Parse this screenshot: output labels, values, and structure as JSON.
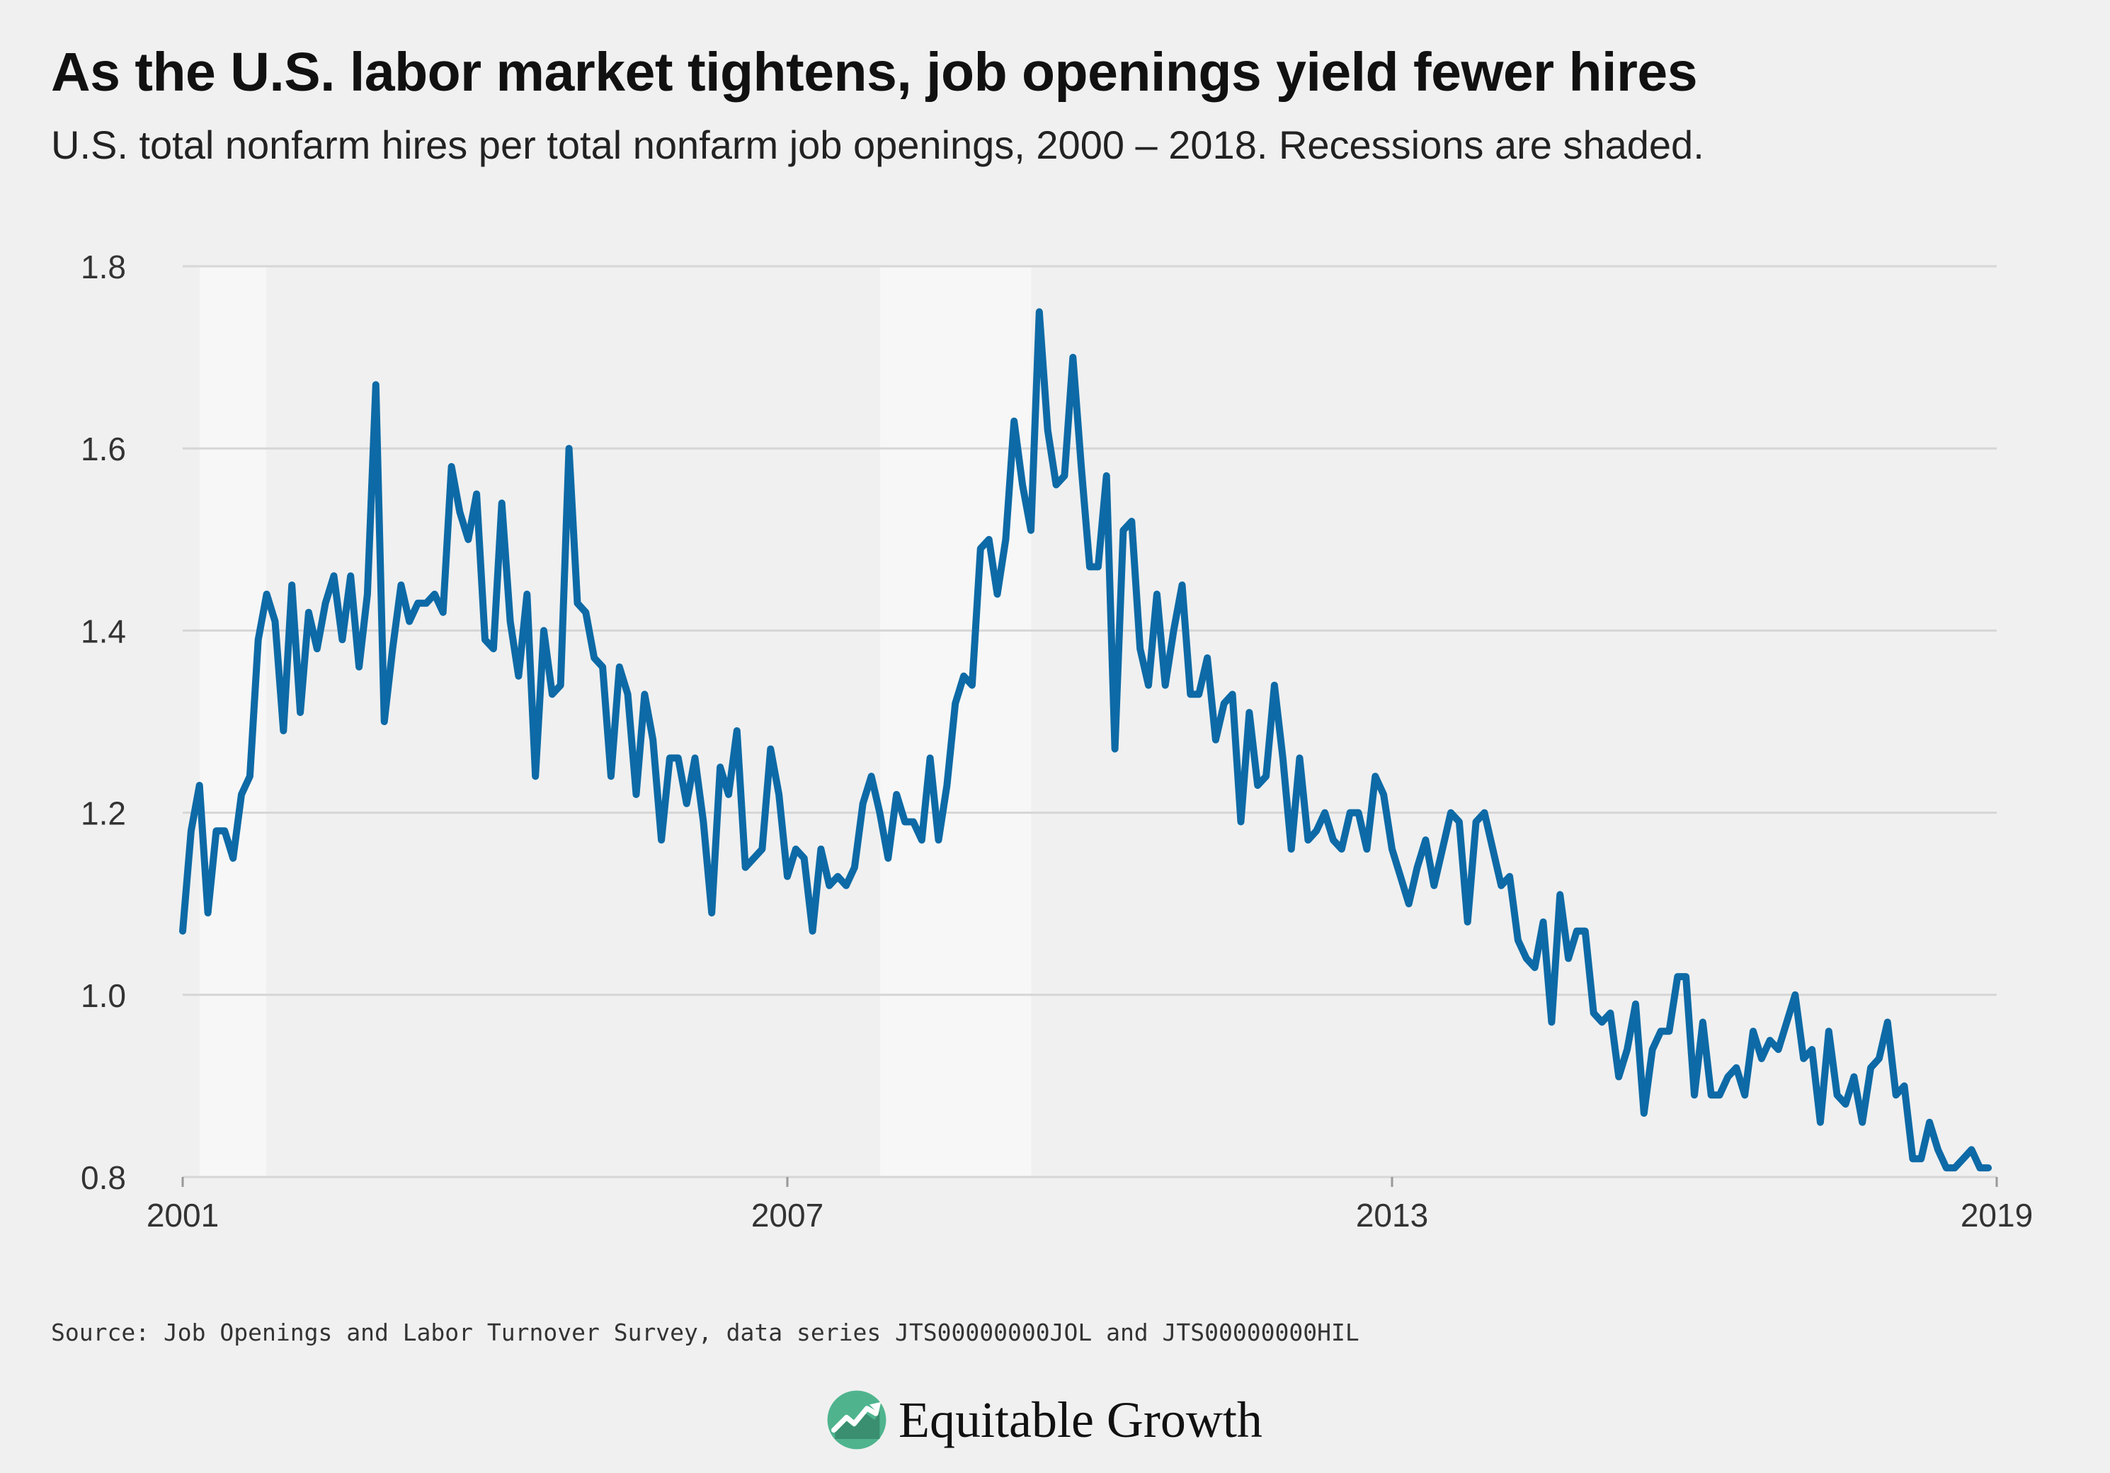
{
  "title": "As the U.S. labor market tightens, job openings yield fewer hires",
  "subtitle": "U.S. total nonfarm hires per total nonfarm job openings, 2000 – 2018. Recessions are shaded.",
  "source": "Source: Job Openings and Labor Turnover Survey, data series JTS00000000JOL and JTS00000000HIL",
  "brand": {
    "name": "Equitable Growth",
    "logo_icon": "chart-growth-logo-icon"
  },
  "colors": {
    "background": "#f0f0f0",
    "line": "#0d6aa6",
    "recession": "#f7f7f7",
    "grid": "#d6d6d6",
    "axis_text": "#333333",
    "logo": "#4fb48e"
  },
  "chart_data": {
    "type": "line",
    "title": "",
    "xlabel": "",
    "ylabel": "",
    "xlim": [
      2001,
      2019
    ],
    "ylim": [
      0.8,
      1.8
    ],
    "x_ticks": [
      2001,
      2007,
      2013,
      2019
    ],
    "x_tick_labels": [
      "2001",
      "2007",
      "2013",
      "2019"
    ],
    "y_ticks": [
      0.8,
      1.0,
      1.2,
      1.4,
      1.6,
      1.8
    ],
    "y_tick_labels": [
      "0.8",
      "1.0",
      "1.2",
      "1.4",
      "1.6",
      "1.8"
    ],
    "grid": "horizontal",
    "recessions": [
      {
        "start": 2001.17,
        "end": 2001.83
      },
      {
        "start": 2007.92,
        "end": 2009.42
      }
    ],
    "series": [
      {
        "values": [
          1.07,
          1.18,
          1.23,
          1.09,
          1.18,
          1.18,
          1.15,
          1.22,
          1.24,
          1.39,
          1.44,
          1.41,
          1.29,
          1.45,
          1.31,
          1.42,
          1.38,
          1.43,
          1.46,
          1.39,
          1.46,
          1.36,
          1.44,
          1.67,
          1.3,
          1.38,
          1.45,
          1.41,
          1.43,
          1.43,
          1.44,
          1.42,
          1.58,
          1.53,
          1.5,
          1.55,
          1.39,
          1.38,
          1.54,
          1.41,
          1.35,
          1.44,
          1.24,
          1.4,
          1.33,
          1.34,
          1.6,
          1.43,
          1.42,
          1.37,
          1.36,
          1.24,
          1.36,
          1.33,
          1.22,
          1.33,
          1.28,
          1.17,
          1.26,
          1.26,
          1.21,
          1.26,
          1.19,
          1.09,
          1.25,
          1.22,
          1.29,
          1.14,
          1.15,
          1.16,
          1.27,
          1.22,
          1.13,
          1.16,
          1.15,
          1.07,
          1.16,
          1.12,
          1.13,
          1.12,
          1.14,
          1.21,
          1.24,
          1.2,
          1.15,
          1.22,
          1.19,
          1.19,
          1.17,
          1.26,
          1.17,
          1.23,
          1.32,
          1.35,
          1.34,
          1.49,
          1.5,
          1.44,
          1.5,
          1.63,
          1.56,
          1.51,
          1.75,
          1.62,
          1.56,
          1.57,
          1.7,
          1.58,
          1.47,
          1.47,
          1.57,
          1.27,
          1.51,
          1.52,
          1.38,
          1.34,
          1.44,
          1.34,
          1.4,
          1.45,
          1.33,
          1.33,
          1.37,
          1.28,
          1.32,
          1.33,
          1.19,
          1.31,
          1.23,
          1.24,
          1.34,
          1.26,
          1.16,
          1.26,
          1.17,
          1.18,
          1.2,
          1.17,
          1.16,
          1.2,
          1.2,
          1.16,
          1.24,
          1.22,
          1.16,
          1.13,
          1.1,
          1.14,
          1.17,
          1.12,
          1.16,
          1.2,
          1.19,
          1.08,
          1.19,
          1.2,
          1.16,
          1.12,
          1.13,
          1.06,
          1.04,
          1.03,
          1.08,
          0.97,
          1.11,
          1.04,
          1.07,
          1.07,
          0.98,
          0.97,
          0.98,
          0.91,
          0.94,
          0.99,
          0.87,
          0.94,
          0.96,
          0.96,
          1.02,
          1.02,
          0.89,
          0.97,
          0.89,
          0.89,
          0.91,
          0.92,
          0.89,
          0.96,
          0.93,
          0.95,
          0.94,
          0.97,
          1.0,
          0.93,
          0.94,
          0.86,
          0.96,
          0.89,
          0.88,
          0.91,
          0.86,
          0.92,
          0.93,
          0.97,
          0.89,
          0.9,
          0.82,
          0.82,
          0.86,
          0.83,
          0.81,
          0.81,
          0.82,
          0.83,
          0.81,
          0.81
        ],
        "x_start": 2001.0,
        "x_step": 0.0833333
      }
    ]
  }
}
